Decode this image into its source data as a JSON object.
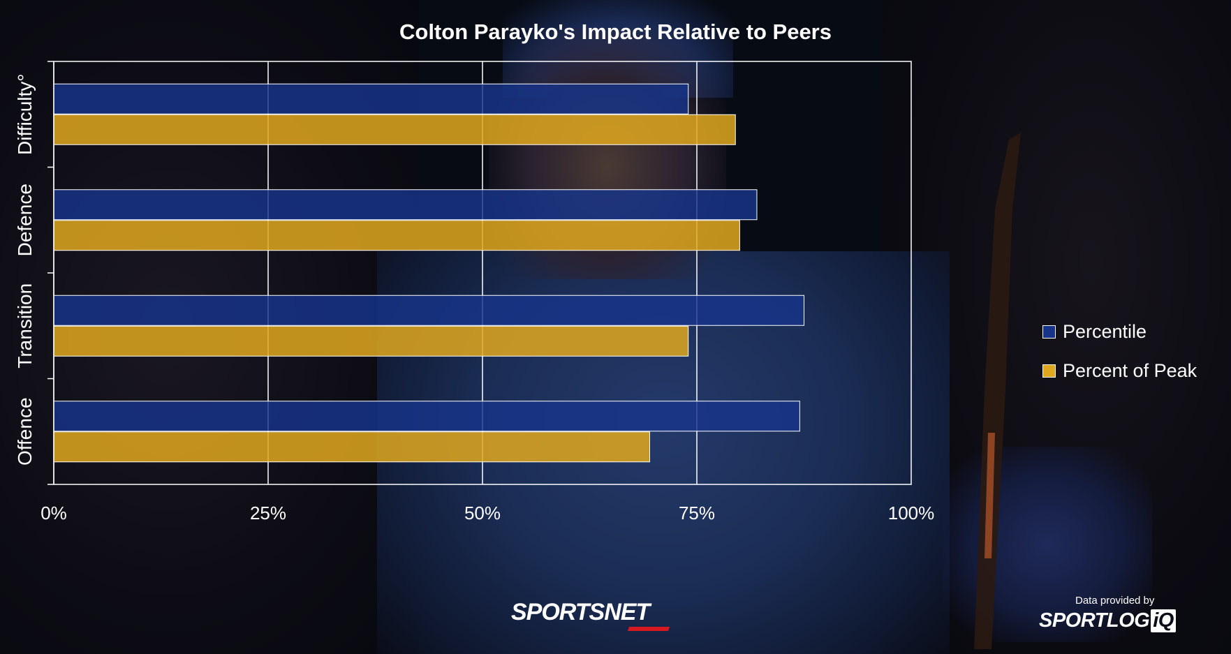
{
  "chart_data": {
    "type": "bar",
    "orientation": "horizontal",
    "title": "Colton Parayko's Impact Relative to Peers",
    "categories": [
      "Difficulty°",
      "Defence",
      "Transition",
      "Offence"
    ],
    "series": [
      {
        "name": "Percentile",
        "color": "#17348a",
        "values": [
          74,
          82,
          87.5,
          87
        ]
      },
      {
        "name": "Percent of Peak",
        "color": "#e0a81f",
        "values": [
          79.5,
          80,
          74,
          69.5
        ]
      }
    ],
    "xlim": [
      0,
      100
    ],
    "xticks": [
      "0%",
      "25%",
      "50%",
      "75%",
      "100%"
    ],
    "xtick_values": [
      0,
      25,
      50,
      75,
      100
    ],
    "grid": true,
    "legend_position": "right"
  },
  "footer": {
    "sportsnet_logo": "SPORTSNET",
    "credit_small": "Data provided by",
    "credit_brand_main": "SPORTLOG",
    "credit_brand_iq": "iQ"
  },
  "background": {
    "description_color": "#070b14"
  }
}
